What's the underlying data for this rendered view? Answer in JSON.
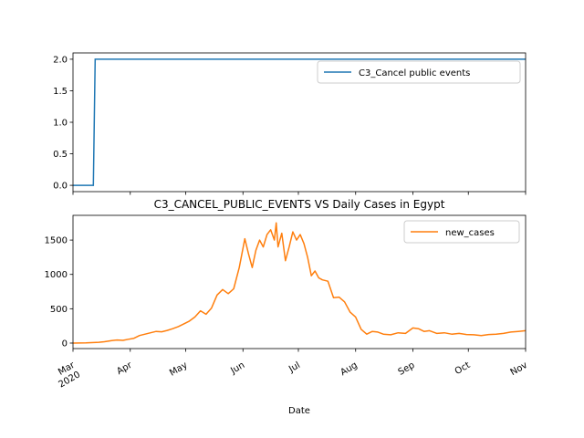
{
  "chart_data": [
    {
      "type": "line",
      "title": "",
      "xlabel": "",
      "ylabel": "",
      "x_range": [
        "2020-03-01",
        "2020-11-01"
      ],
      "ylim": [
        -0.1,
        2.1
      ],
      "yticks": [
        "0.0",
        "0.5",
        "1.0",
        "1.5",
        "2.0"
      ],
      "legend": "top-right",
      "grid": false,
      "series": [
        {
          "name": "C3_Cancel public events",
          "color": "#1f77b4",
          "x": [
            "2020-03-01",
            "2020-03-12",
            "2020-03-13",
            "2020-11-01"
          ],
          "y": [
            0,
            0,
            2,
            2
          ]
        }
      ]
    },
    {
      "type": "line",
      "title": "C3_CANCEL_PUBLIC_EVENTS VS Daily Cases in Egypt",
      "xlabel": "Date",
      "ylabel": "",
      "x_range": [
        "2020-03-01",
        "2020-11-01"
      ],
      "ylim": [
        -80,
        1860
      ],
      "yticks": [
        "0",
        "500",
        "1000",
        "1500"
      ],
      "xticks": [
        {
          "date": "2020-03-01",
          "label": "Mar",
          "sublabel": "2020"
        },
        {
          "date": "2020-04-01",
          "label": "Apr",
          "sublabel": ""
        },
        {
          "date": "2020-05-01",
          "label": "May",
          "sublabel": ""
        },
        {
          "date": "2020-06-01",
          "label": "Jun",
          "sublabel": ""
        },
        {
          "date": "2020-07-01",
          "label": "Jul",
          "sublabel": ""
        },
        {
          "date": "2020-08-01",
          "label": "Aug",
          "sublabel": ""
        },
        {
          "date": "2020-09-01",
          "label": "Sep",
          "sublabel": ""
        },
        {
          "date": "2020-10-01",
          "label": "Oct",
          "sublabel": ""
        },
        {
          "date": "2020-11-01",
          "label": "Nov",
          "sublabel": ""
        }
      ],
      "legend": "top-right",
      "grid": false,
      "series": [
        {
          "name": "new_cases",
          "color": "#ff7f0e",
          "x": [
            "2020-03-01",
            "2020-03-08",
            "2020-03-15",
            "2020-03-18",
            "2020-03-22",
            "2020-03-25",
            "2020-03-28",
            "2020-03-31",
            "2020-04-03",
            "2020-04-06",
            "2020-04-09",
            "2020-04-12",
            "2020-04-15",
            "2020-04-18",
            "2020-04-21",
            "2020-04-24",
            "2020-04-27",
            "2020-04-30",
            "2020-05-03",
            "2020-05-06",
            "2020-05-09",
            "2020-05-12",
            "2020-05-15",
            "2020-05-18",
            "2020-05-21",
            "2020-05-24",
            "2020-05-27",
            "2020-05-30",
            "2020-06-02",
            "2020-06-04",
            "2020-06-06",
            "2020-06-08",
            "2020-06-10",
            "2020-06-12",
            "2020-06-14",
            "2020-06-16",
            "2020-06-18",
            "2020-06-19",
            "2020-06-20",
            "2020-06-22",
            "2020-06-24",
            "2020-06-26",
            "2020-06-28",
            "2020-06-30",
            "2020-07-02",
            "2020-07-04",
            "2020-07-06",
            "2020-07-08",
            "2020-07-10",
            "2020-07-12",
            "2020-07-14",
            "2020-07-17",
            "2020-07-20",
            "2020-07-23",
            "2020-07-26",
            "2020-07-29",
            "2020-08-01",
            "2020-08-04",
            "2020-08-07",
            "2020-08-10",
            "2020-08-13",
            "2020-08-16",
            "2020-08-20",
            "2020-08-24",
            "2020-08-28",
            "2020-09-01",
            "2020-09-04",
            "2020-09-07",
            "2020-09-10",
            "2020-09-14",
            "2020-09-18",
            "2020-09-22",
            "2020-09-26",
            "2020-09-30",
            "2020-10-04",
            "2020-10-08",
            "2020-10-12",
            "2020-10-16",
            "2020-10-20",
            "2020-10-24",
            "2020-10-28",
            "2020-11-01"
          ],
          "y": [
            0,
            3,
            12,
            20,
            35,
            45,
            40,
            55,
            70,
            110,
            130,
            150,
            170,
            165,
            185,
            210,
            240,
            280,
            320,
            380,
            470,
            420,
            510,
            700,
            780,
            720,
            790,
            1100,
            1520,
            1300,
            1100,
            1350,
            1500,
            1400,
            1580,
            1650,
            1500,
            1750,
            1400,
            1600,
            1200,
            1400,
            1620,
            1500,
            1580,
            1450,
            1250,
            980,
            1050,
            950,
            920,
            900,
            660,
            670,
            600,
            450,
            380,
            200,
            130,
            170,
            160,
            130,
            120,
            150,
            140,
            220,
            210,
            170,
            180,
            140,
            150,
            130,
            140,
            125,
            120,
            110,
            125,
            130,
            140,
            160,
            170,
            180
          ]
        }
      ]
    }
  ]
}
